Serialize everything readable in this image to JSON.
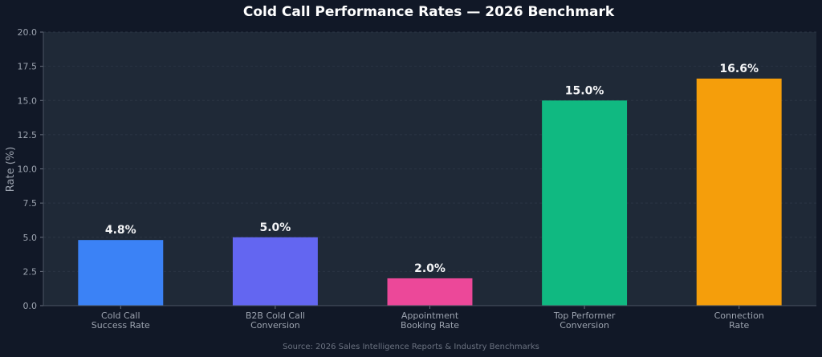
{
  "chart_data": {
    "type": "bar",
    "title": "Cold Call Performance Rates — 2026 Benchmark",
    "ylabel": "Rate (%)",
    "xlabel": "",
    "ylim": [
      0,
      20
    ],
    "yticks": [
      "0.0",
      "2.5",
      "5.0",
      "7.5",
      "10.0",
      "12.5",
      "15.0",
      "17.5",
      "20.0"
    ],
    "ytick_values": [
      0,
      2.5,
      5,
      7.5,
      10,
      12.5,
      15,
      17.5,
      20
    ],
    "categories": [
      [
        "Cold Call",
        "Success Rate"
      ],
      [
        "B2B Cold Call",
        "Conversion"
      ],
      [
        "Appointment",
        "Booking Rate"
      ],
      [
        "Top Performer",
        "Conversion"
      ],
      [
        "Connection",
        "Rate"
      ]
    ],
    "values": [
      4.8,
      5.0,
      2.0,
      15.0,
      16.6
    ],
    "value_labels": [
      "4.8%",
      "5.0%",
      "2.0%",
      "15.0%",
      "16.6%"
    ],
    "colors": [
      "#3b82f6",
      "#6366f1",
      "#ec4899",
      "#10b981",
      "#f59e0b"
    ],
    "grid": true,
    "source": "Source: 2026 Sales Intelligence Reports & Industry Benchmarks"
  }
}
